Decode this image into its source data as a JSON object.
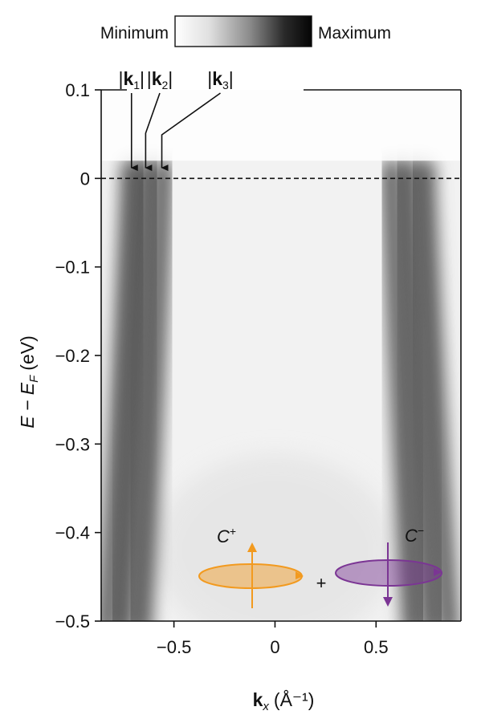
{
  "colorbar": {
    "min_label": "Minimum",
    "max_label": "Maximum"
  },
  "chart_data": {
    "type": "heatmap",
    "xlabel": {
      "main": "k",
      "sub": "x",
      "unit": "(Å⁻¹)"
    },
    "ylabel": {
      "main": "E − E",
      "sub": "F",
      "unit": "(eV)"
    },
    "xlim": [
      -0.86,
      0.92
    ],
    "ylim": [
      -0.5,
      0.1
    ],
    "x_ticks": [
      -0.5,
      0,
      0.5
    ],
    "x_tick_labels": [
      "−0.5",
      "0",
      "0.5"
    ],
    "y_ticks": [
      0.1,
      0,
      -0.1,
      -0.2,
      -0.3,
      -0.4,
      -0.5
    ],
    "y_tick_labels": [
      "0.1",
      "0",
      "−0.1",
      "−0.2",
      "−0.3",
      "−0.4",
      "−0.5"
    ],
    "fermi_level": 0,
    "bands": [
      {
        "kF": -0.71,
        "slope": 0.32,
        "label": "k",
        "label_sub": "1",
        "label_x": -0.71
      },
      {
        "kF": -0.64,
        "slope": 0.3,
        "label": "k",
        "label_sub": "2",
        "label_x": -0.57
      },
      {
        "kF": -0.56,
        "slope": 0.28,
        "label": "k",
        "label_sub": "3",
        "label_x": -0.27
      }
    ],
    "mirror_bands_kF": [
      0.58,
      0.66,
      0.74
    ],
    "polarization": {
      "left_label": "C",
      "left_sup": "+",
      "right_label": "C",
      "right_sup": "−",
      "plus": "+",
      "left_color": "#f29a1f",
      "right_color": "#7b3594"
    }
  }
}
